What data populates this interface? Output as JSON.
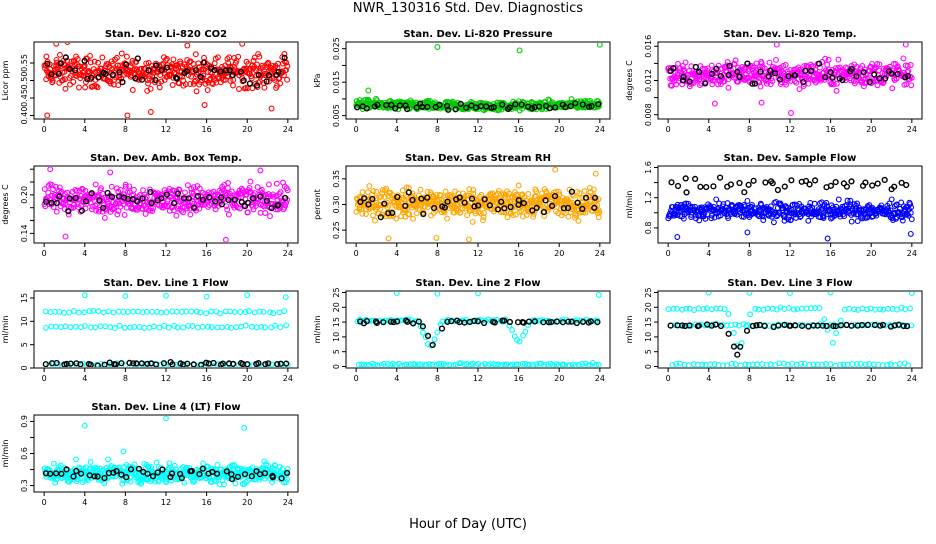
{
  "figure": {
    "title": "NWR_130316  Std. Dev. Diagnostics",
    "xlabel": "Hour of Day (UTC)"
  },
  "colors": {
    "co2": "#ff0000",
    "pressure": "#00cc00",
    "temp": "#ff00ff",
    "rh": "#ffa500",
    "flow": "#0000ff",
    "line": "#00ffff",
    "mean": "#000000"
  },
  "chart_data": [
    {
      "type": "scatter",
      "id": "co2",
      "title": "Stan. Dev. Li-820 CO2",
      "ylabel": "Licor ppm",
      "xlim": [
        -1,
        25
      ],
      "ylim": [
        0.39,
        0.61
      ],
      "xticks": [
        0,
        4,
        8,
        12,
        16,
        20,
        24
      ],
      "yticks": [
        0.4,
        0.45,
        0.5,
        0.55
      ],
      "ytick_labels": [
        "0.40",
        "0.45",
        "0.50",
        "0.55"
      ],
      "series": [
        {
          "role": "data",
          "color": "co2",
          "band": [
            0.46,
            0.59
          ],
          "count": 460,
          "outliers": [
            [
              0.3,
              0.4
            ],
            [
              1.2,
              0.605
            ],
            [
              2.3,
              0.61
            ],
            [
              8.2,
              0.4
            ],
            [
              10.5,
              0.41
            ],
            [
              14.1,
              0.6
            ],
            [
              15.8,
              0.43
            ],
            [
              19.5,
              0.605
            ],
            [
              22.4,
              0.42
            ]
          ]
        },
        {
          "role": "mean",
          "color": "mean",
          "band": [
            0.47,
            0.58
          ],
          "count": 48
        }
      ]
    },
    {
      "type": "scatter",
      "id": "pressure",
      "title": "Stan. Dev. Li-820 Pressure",
      "ylabel": "kPa",
      "xlim": [
        -1,
        25
      ],
      "ylim": [
        0.004,
        0.027
      ],
      "xticks": [
        0,
        4,
        8,
        12,
        16,
        20,
        24
      ],
      "yticks": [
        0.005,
        0.01,
        0.015,
        0.02,
        0.025
      ],
      "ytick_labels": [
        "0.005",
        "",
        "0.015",
        "",
        "0.025"
      ],
      "series": [
        {
          "role": "data",
          "color": "pressure",
          "band": [
            0.0065,
            0.0105
          ],
          "dip": true,
          "count": 460,
          "outliers": [
            [
              1.2,
              0.0125
            ],
            [
              8.0,
              0.0255
            ],
            [
              16.1,
              0.0245
            ],
            [
              24.0,
              0.0262
            ]
          ]
        },
        {
          "role": "mean",
          "color": "mean",
          "band": [
            0.0068,
            0.0092
          ],
          "dip": true,
          "count": 48
        }
      ]
    },
    {
      "type": "scatter",
      "id": "temp",
      "title": "Stan. Dev. Li-820 Temp.",
      "ylabel": "degrees C",
      "xlim": [
        -1,
        25
      ],
      "ylim": [
        0.0075,
        0.0165
      ],
      "xticks": [
        0,
        4,
        8,
        12,
        16,
        20,
        24
      ],
      "yticks": [
        0.008,
        0.01,
        0.012,
        0.014,
        0.016
      ],
      "ytick_labels": [
        "0.008",
        "",
        "0.012",
        "",
        "0.016"
      ],
      "series": [
        {
          "role": "data",
          "color": "temp",
          "band": [
            0.0105,
            0.015
          ],
          "count": 460,
          "outliers": [
            [
              4.6,
              0.0093
            ],
            [
              9.2,
              0.0094
            ],
            [
              10.7,
              0.0162
            ],
            [
              12.1,
              0.0082
            ],
            [
              23.4,
              0.0162
            ]
          ]
        },
        {
          "role": "mean",
          "color": "mean",
          "band": [
            0.0112,
            0.0143
          ],
          "count": 48
        }
      ]
    },
    {
      "type": "scatter",
      "id": "ambtemp",
      "title": "Stan. Dev. Amb. Box Temp.",
      "ylabel": "degrees C",
      "xlim": [
        -1,
        25
      ],
      "ylim": [
        0.125,
        0.245
      ],
      "xticks": [
        0,
        4,
        8,
        12,
        16,
        20,
        24
      ],
      "yticks": [
        0.14,
        0.16,
        0.18,
        0.2,
        0.22,
        0.24
      ],
      "ytick_labels": [
        "0.14",
        "",
        "",
        "0.20",
        "",
        ""
      ],
      "series": [
        {
          "role": "data",
          "color": "temp",
          "band": [
            0.16,
            0.225
          ],
          "count": 460,
          "outliers": [
            [
              0.6,
              0.24
            ],
            [
              2.1,
              0.135
            ],
            [
              6.5,
              0.235
            ],
            [
              17.9,
              0.13
            ],
            [
              21.3,
              0.238
            ]
          ]
        },
        {
          "role": "mean",
          "color": "mean",
          "band": [
            0.165,
            0.215
          ],
          "count": 48
        }
      ]
    },
    {
      "type": "scatter",
      "id": "rh",
      "title": "Stan. Dev. Gas Stream RH",
      "ylabel": "percent",
      "xlim": [
        -1,
        25
      ],
      "ylim": [
        0.225,
        0.375
      ],
      "xticks": [
        0,
        4,
        8,
        12,
        16,
        20,
        24
      ],
      "yticks": [
        0.25,
        0.3,
        0.35
      ],
      "ytick_labels": [
        "0.25",
        "0.30",
        "0.35"
      ],
      "series": [
        {
          "role": "data",
          "color": "rh",
          "band": [
            0.26,
            0.345
          ],
          "count": 520,
          "outliers": [
            [
              3.2,
              0.234
            ],
            [
              7.9,
              0.235
            ],
            [
              11.1,
              0.232
            ],
            [
              19.6,
              0.368
            ],
            [
              23.6,
              0.36
            ]
          ]
        },
        {
          "role": "mean",
          "color": "mean",
          "band": [
            0.265,
            0.33
          ],
          "count": 48
        }
      ]
    },
    {
      "type": "scatter",
      "id": "sampleflow",
      "title": "Stan. Dev. Sample Flow",
      "ylabel": "ml/min",
      "xlim": [
        -1,
        25
      ],
      "ylim": [
        0.6,
        1.62
      ],
      "xticks": [
        0,
        4,
        8,
        12,
        16,
        20,
        24
      ],
      "yticks": [
        0.8,
        1.0,
        1.2,
        1.4,
        1.6
      ],
      "ytick_labels": [
        "0.8",
        "",
        "1.2",
        "",
        "1.6"
      ],
      "series": [
        {
          "role": "data",
          "color": "flow",
          "band": [
            0.85,
            1.2
          ],
          "count": 460,
          "outliers": [
            [
              0.9,
              0.68
            ],
            [
              7.8,
              0.74
            ],
            [
              15.7,
              0.66
            ],
            [
              23.9,
              0.72
            ]
          ]
        },
        {
          "role": "mean",
          "color": "mean",
          "band": [
            1.25,
            1.5
          ],
          "count": 40
        }
      ]
    },
    {
      "type": "scatter",
      "id": "line1",
      "title": "Stan. Dev. Line 1 Flow",
      "ylabel": "ml/min",
      "xlim": [
        -1,
        25
      ],
      "ylim": [
        0,
        16.5
      ],
      "xticks": [
        0,
        4,
        8,
        12,
        16,
        20,
        24
      ],
      "yticks": [
        0,
        5,
        10,
        15
      ],
      "ytick_labels": [
        "0",
        "5",
        "10",
        "15"
      ],
      "series": [
        {
          "role": "data",
          "color": "line",
          "levels": [
            12.0,
            8.8,
            0.7
          ],
          "count": 150,
          "outliers": [
            [
              4.0,
              15.6
            ],
            [
              8.0,
              15.4
            ],
            [
              12.0,
              15.5
            ],
            [
              16.0,
              15.3
            ],
            [
              20.0,
              15.6
            ],
            [
              23.8,
              15.2
            ]
          ]
        },
        {
          "role": "mean",
          "color": "mean",
          "levels": [
            0.9
          ],
          "count": 48
        }
      ]
    },
    {
      "type": "scatter",
      "id": "line2",
      "title": "Stan. Dev. Line 2 Flow",
      "ylabel": "ml/min",
      "xlim": [
        -1,
        25
      ],
      "ylim": [
        -0.5,
        25.5
      ],
      "xticks": [
        0,
        4,
        8,
        12,
        16,
        20,
        24
      ],
      "yticks": [
        0,
        5,
        10,
        15,
        20,
        25
      ],
      "ytick_labels": [
        "0",
        "5",
        "10",
        "15",
        "20",
        "25"
      ],
      "series": [
        {
          "role": "data",
          "color": "line",
          "levels": [
            15.5,
            0.7
          ],
          "count": 170,
          "dips": [
            [
              7.3,
              6.0
            ],
            [
              16.0,
              8.0
            ]
          ],
          "outliers": [
            [
              4.0,
              24.8
            ],
            [
              8.0,
              24.6
            ],
            [
              12.0,
              24.7
            ],
            [
              23.9,
              24.2
            ]
          ]
        },
        {
          "role": "mean",
          "color": "mean",
          "levels": [
            15.0
          ],
          "count": 48,
          "dips": [
            [
              7.6,
              6.5
            ]
          ]
        }
      ]
    },
    {
      "type": "scatter",
      "id": "line3",
      "title": "Stan. Dev. Line 3 Flow",
      "ylabel": "ml/min",
      "xlim": [
        -1,
        25
      ],
      "ylim": [
        -0.5,
        25.5
      ],
      "xticks": [
        0,
        4,
        8,
        12,
        16,
        20,
        24
      ],
      "yticks": [
        0,
        5,
        10,
        15,
        20,
        25
      ],
      "ytick_labels": [
        "0",
        "5",
        "10",
        "15",
        "20",
        "25"
      ],
      "series": [
        {
          "role": "data",
          "color": "line",
          "levels": [
            19.5,
            14.0,
            0.7
          ],
          "count": 170,
          "dips": [
            [
              7.0,
              5.0
            ],
            [
              16.2,
              8.0
            ]
          ],
          "outliers": [
            [
              4.0,
              25.0
            ],
            [
              8.0,
              24.9
            ],
            [
              12.0,
              24.8
            ],
            [
              16.0,
              25.0
            ],
            [
              24.0,
              24.8
            ]
          ]
        },
        {
          "role": "mean",
          "color": "mean",
          "levels": [
            13.8
          ],
          "count": 48,
          "dips": [
            [
              6.8,
              4.0
            ]
          ]
        }
      ]
    },
    {
      "type": "scatter",
      "id": "line4",
      "title": "Stan. Dev. Line 4 (LT) Flow",
      "ylabel": "ml/min",
      "xlim": [
        -1,
        25
      ],
      "ylim": [
        0.24,
        0.96
      ],
      "xticks": [
        0,
        4,
        8,
        12,
        16,
        20,
        24
      ],
      "yticks": [
        0.3,
        0.45,
        0.6,
        0.75,
        0.9
      ],
      "ytick_labels": [
        "0.3",
        "",
        "0.6",
        "",
        "0.9"
      ],
      "series": [
        {
          "role": "data",
          "color": "line",
          "band": [
            0.28,
            0.55
          ],
          "count": 460,
          "outliers": [
            [
              4.0,
              0.86
            ],
            [
              12.0,
              0.93
            ],
            [
              19.7,
              0.84
            ],
            [
              7.8,
              0.62
            ]
          ]
        },
        {
          "role": "mean",
          "color": "mean",
          "band": [
            0.33,
            0.48
          ],
          "count": 48
        }
      ]
    }
  ]
}
